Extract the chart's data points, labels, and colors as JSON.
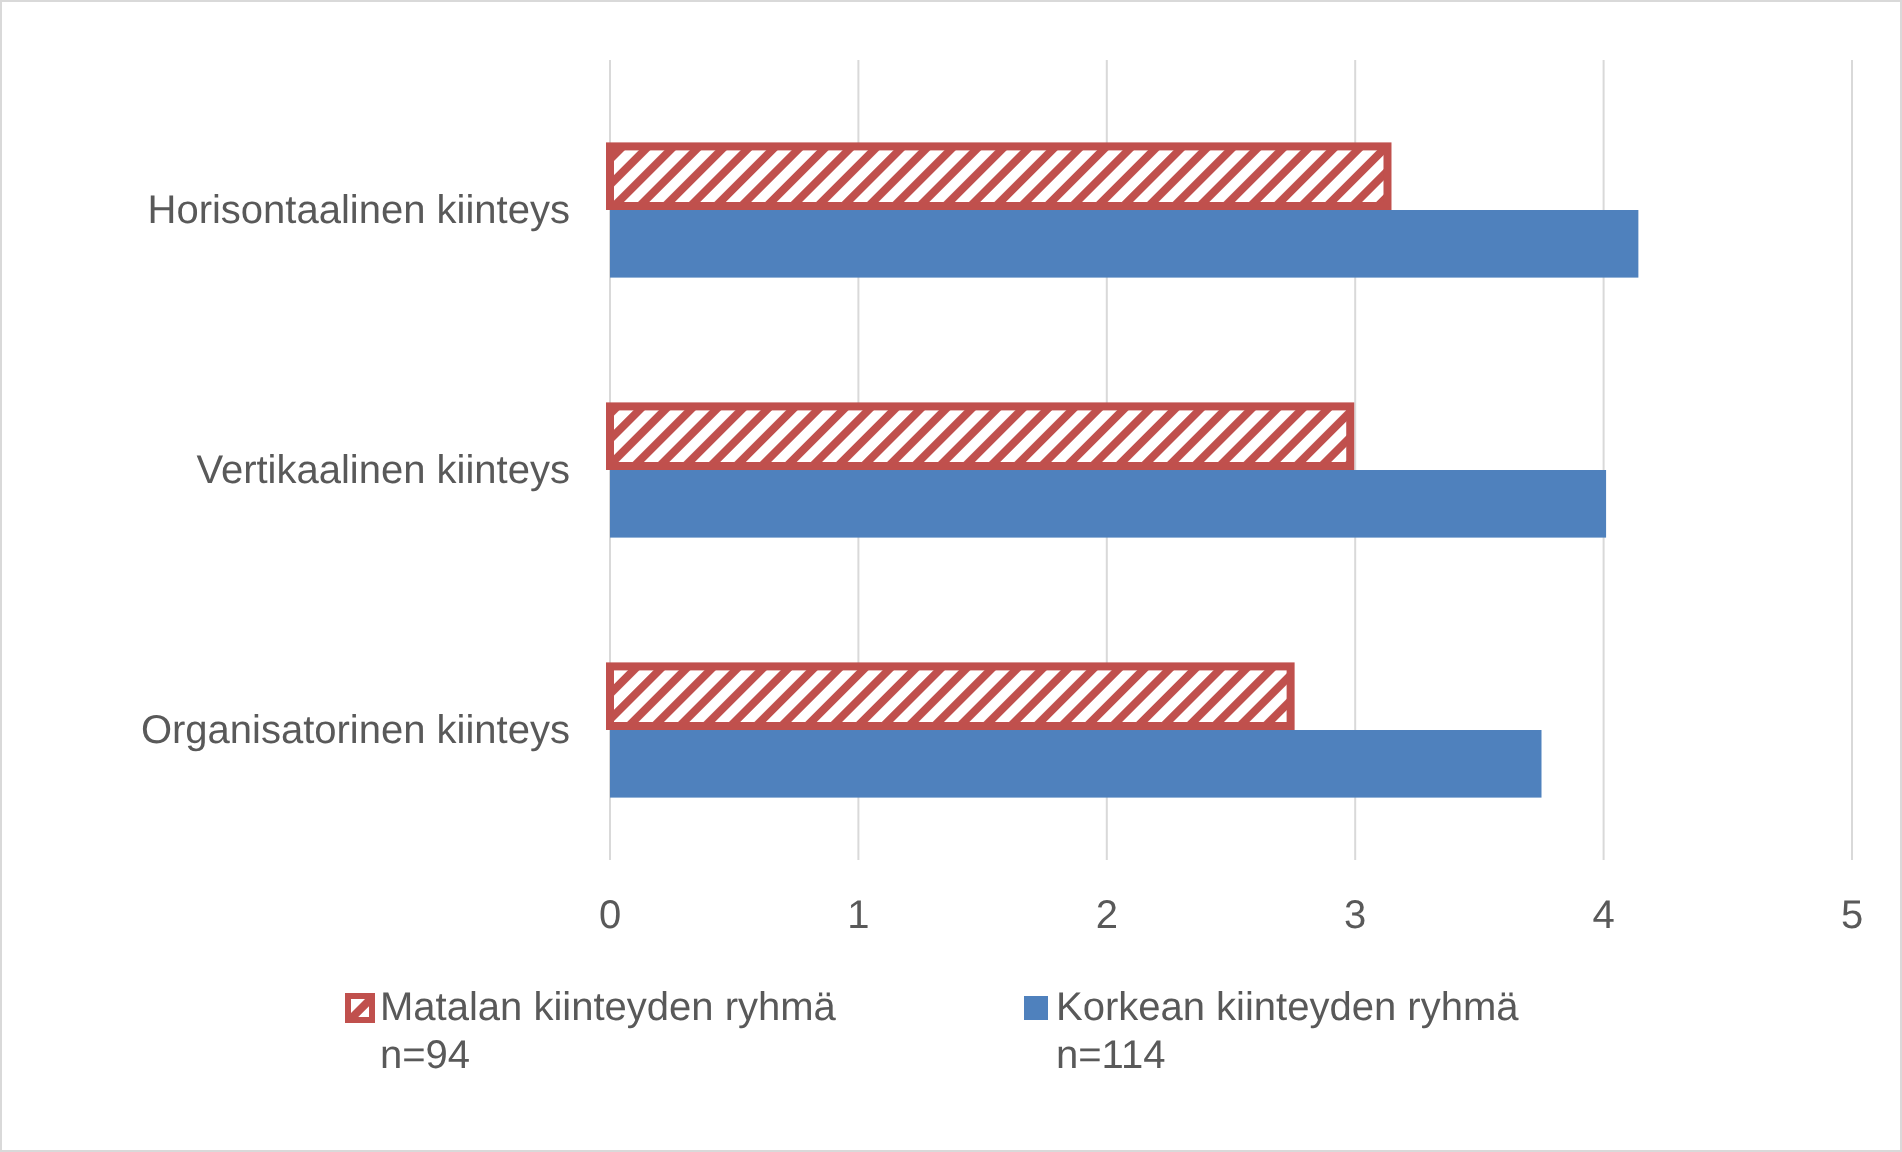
{
  "chart_data": {
    "type": "bar",
    "orientation": "horizontal",
    "categories": [
      "Horisontaalinen kiinteys",
      "Vertikaalinen kiinteys",
      "Organisatorinen kiinteys"
    ],
    "series": [
      {
        "name": "Matalan kiinteyden ryhmä\nn=94",
        "color": "#c0504d",
        "values": [
          3.13,
          2.98,
          2.74
        ]
      },
      {
        "name": "Korkean kiinteyden ryhmä\nn=114",
        "color": "#4f81bd",
        "values": [
          4.14,
          4.01,
          3.75
        ]
      }
    ],
    "xlim": [
      0,
      5
    ],
    "xticks": [
      0,
      1,
      2,
      3,
      4,
      5
    ],
    "grid": "x",
    "legend": "bottom"
  }
}
